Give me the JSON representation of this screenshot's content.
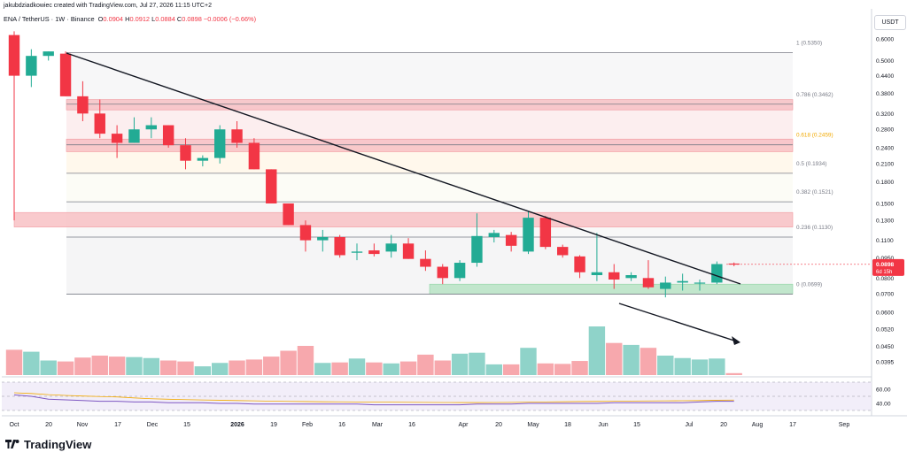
{
  "attribution": "jakubdziadkowiec created with TradingView.com, Jul 27, 2026 11:15 UTC+2",
  "legend": {
    "symbol": "ENA / TetherUS · 1W · Binance",
    "open_label": "O",
    "open": "0.0904",
    "high_label": "H",
    "high": "0.0912",
    "low_label": "L",
    "low": "0.0884",
    "close_label": "C",
    "close": "0.0898",
    "change": "−0.0006 (−0.66%)"
  },
  "currency_button": "USDT",
  "brand": "TradingView",
  "colors": {
    "up": "#22ab94",
    "down": "#f23645",
    "volume_up": "#8fd3c9",
    "volume_down": "#f7a8ad",
    "rsi": "#7e57c2",
    "accent": "#f2a900"
  },
  "chart_data": {
    "type": "candlestick",
    "scale": "log",
    "price_axis": [
      "0.6000",
      "0.5000",
      "0.4400",
      "0.3800",
      "0.3200",
      "0.2800",
      "0.2400",
      "0.2100",
      "0.1800",
      "0.1500",
      "0.1300",
      "0.1100",
      "0.0950",
      "0.0800",
      "0.0700",
      "0.0600",
      "0.0520",
      "0.0450",
      "0.0395"
    ],
    "rsi_axis": [
      "60.00",
      "40.00"
    ],
    "x_ticks": [
      "Oct",
      "20",
      "Nov",
      "17",
      "Dec",
      "15",
      "2026",
      "19",
      "Feb",
      "16",
      "Mar",
      "16",
      "Apr",
      "20",
      "May",
      "18",
      "Jun",
      "15",
      "Jul",
      "20",
      "Aug",
      "17",
      "Sep"
    ],
    "fib_levels": [
      {
        "ratio": "1",
        "price": 0.535,
        "label": "1 (0.5350)"
      },
      {
        "ratio": "0.786",
        "price": 0.3462,
        "label": "0.786 (0.3462)"
      },
      {
        "ratio": "0.618",
        "price": 0.2459,
        "label": "0.618 (0.2459)"
      },
      {
        "ratio": "0.5",
        "price": 0.1934,
        "label": "0.5 (0.1934)"
      },
      {
        "ratio": "0.382",
        "price": 0.1521,
        "label": "0.382 (0.1521)"
      },
      {
        "ratio": "0.236",
        "price": 0.113,
        "label": "0.236 (0.1130)"
      },
      {
        "ratio": "0",
        "price": 0.0699,
        "label": "0 (0.0699)"
      }
    ],
    "zones": [
      {
        "kind": "resistance",
        "low": 0.33,
        "high": 0.36
      },
      {
        "kind": "resistance",
        "low": 0.232,
        "high": 0.258
      },
      {
        "kind": "resistance",
        "low": 0.123,
        "high": 0.139
      },
      {
        "kind": "support",
        "low": 0.0699,
        "high": 0.076
      }
    ],
    "current_price": "0.0898",
    "countdown": "6d 15h",
    "candles": [
      {
        "o": 0.62,
        "h": 0.64,
        "l": 0.13,
        "c": 0.44,
        "v": 52
      },
      {
        "o": 0.44,
        "h": 0.55,
        "l": 0.4,
        "c": 0.52,
        "v": 48
      },
      {
        "o": 0.52,
        "h": 0.54,
        "l": 0.5,
        "c": 0.54,
        "v": 30
      },
      {
        "o": 0.53,
        "h": 0.54,
        "l": 0.37,
        "c": 0.37,
        "v": 28
      },
      {
        "o": 0.37,
        "h": 0.42,
        "l": 0.3,
        "c": 0.32,
        "v": 36
      },
      {
        "o": 0.32,
        "h": 0.36,
        "l": 0.26,
        "c": 0.27,
        "v": 40
      },
      {
        "o": 0.27,
        "h": 0.29,
        "l": 0.22,
        "c": 0.25,
        "v": 38
      },
      {
        "o": 0.25,
        "h": 0.31,
        "l": 0.25,
        "c": 0.28,
        "v": 37
      },
      {
        "o": 0.28,
        "h": 0.31,
        "l": 0.26,
        "c": 0.29,
        "v": 35
      },
      {
        "o": 0.29,
        "h": 0.29,
        "l": 0.24,
        "c": 0.245,
        "v": 30
      },
      {
        "o": 0.245,
        "h": 0.26,
        "l": 0.2,
        "c": 0.215,
        "v": 28
      },
      {
        "o": 0.215,
        "h": 0.225,
        "l": 0.205,
        "c": 0.22,
        "v": 18
      },
      {
        "o": 0.22,
        "h": 0.29,
        "l": 0.21,
        "c": 0.28,
        "v": 25
      },
      {
        "o": 0.28,
        "h": 0.3,
        "l": 0.24,
        "c": 0.25,
        "v": 30
      },
      {
        "o": 0.25,
        "h": 0.26,
        "l": 0.2,
        "c": 0.2,
        "v": 32
      },
      {
        "o": 0.2,
        "h": 0.2,
        "l": 0.15,
        "c": 0.15,
        "v": 38
      },
      {
        "o": 0.15,
        "h": 0.15,
        "l": 0.125,
        "c": 0.125,
        "v": 50
      },
      {
        "o": 0.125,
        "h": 0.13,
        "l": 0.1,
        "c": 0.11,
        "v": 60
      },
      {
        "o": 0.11,
        "h": 0.12,
        "l": 0.1,
        "c": 0.113,
        "v": 25
      },
      {
        "o": 0.113,
        "h": 0.115,
        "l": 0.095,
        "c": 0.097,
        "v": 26
      },
      {
        "o": 0.099,
        "h": 0.107,
        "l": 0.093,
        "c": 0.1,
        "v": 34
      },
      {
        "o": 0.101,
        "h": 0.107,
        "l": 0.096,
        "c": 0.098,
        "v": 26
      },
      {
        "o": 0.1,
        "h": 0.115,
        "l": 0.095,
        "c": 0.107,
        "v": 24
      },
      {
        "o": 0.107,
        "h": 0.112,
        "l": 0.094,
        "c": 0.094,
        "v": 28
      },
      {
        "o": 0.094,
        "h": 0.101,
        "l": 0.085,
        "c": 0.088,
        "v": 42
      },
      {
        "o": 0.088,
        "h": 0.09,
        "l": 0.076,
        "c": 0.08,
        "v": 30
      },
      {
        "o": 0.08,
        "h": 0.093,
        "l": 0.078,
        "c": 0.091,
        "v": 44
      },
      {
        "o": 0.091,
        "h": 0.138,
        "l": 0.088,
        "c": 0.114,
        "v": 46
      },
      {
        "o": 0.113,
        "h": 0.12,
        "l": 0.108,
        "c": 0.117,
        "v": 22
      },
      {
        "o": 0.115,
        "h": 0.118,
        "l": 0.1,
        "c": 0.105,
        "v": 22
      },
      {
        "o": 0.1,
        "h": 0.14,
        "l": 0.098,
        "c": 0.133,
        "v": 56
      },
      {
        "o": 0.133,
        "h": 0.135,
        "l": 0.102,
        "c": 0.104,
        "v": 24
      },
      {
        "o": 0.104,
        "h": 0.106,
        "l": 0.095,
        "c": 0.097,
        "v": 23
      },
      {
        "o": 0.096,
        "h": 0.097,
        "l": 0.08,
        "c": 0.084,
        "v": 29
      },
      {
        "o": 0.082,
        "h": 0.117,
        "l": 0.078,
        "c": 0.084,
        "v": 100
      },
      {
        "o": 0.084,
        "h": 0.09,
        "l": 0.073,
        "c": 0.079,
        "v": 66
      },
      {
        "o": 0.08,
        "h": 0.084,
        "l": 0.078,
        "c": 0.082,
        "v": 62
      },
      {
        "o": 0.08,
        "h": 0.093,
        "l": 0.073,
        "c": 0.074,
        "v": 56
      },
      {
        "o": 0.073,
        "h": 0.081,
        "l": 0.068,
        "c": 0.077,
        "v": 40
      },
      {
        "o": 0.077,
        "h": 0.083,
        "l": 0.072,
        "c": 0.078,
        "v": 35
      },
      {
        "o": 0.077,
        "h": 0.079,
        "l": 0.072,
        "c": 0.077,
        "v": 32
      },
      {
        "o": 0.077,
        "h": 0.092,
        "l": 0.076,
        "c": 0.09,
        "v": 34
      },
      {
        "o": 0.0904,
        "h": 0.0912,
        "l": 0.0884,
        "c": 0.0898,
        "v": 4
      }
    ],
    "rsi": [
      52,
      50,
      46,
      45,
      44,
      43,
      43,
      42,
      42,
      41,
      41,
      41,
      40,
      40,
      39,
      39,
      39,
      39,
      39,
      39,
      39,
      38,
      38,
      38,
      38,
      38,
      38,
      39,
      39,
      39,
      40,
      40,
      40,
      40,
      40,
      41,
      41,
      41,
      41,
      41,
      42,
      43,
      43
    ]
  }
}
